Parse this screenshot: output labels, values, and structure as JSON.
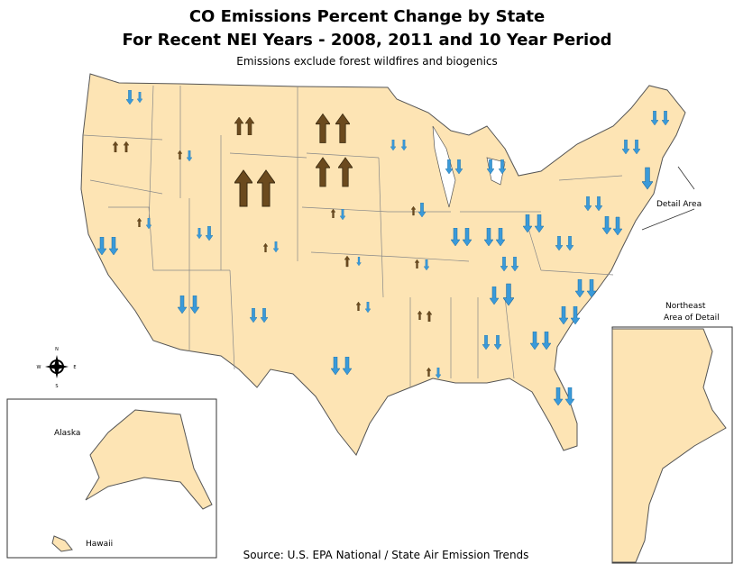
{
  "title": {
    "line1": "CO Emissions Percent Change by State",
    "line2": "For Recent NEI Years - 2008, 2011 and 10 Year Period",
    "subtitle": "Emissions exclude forest wildfires and biogenics"
  },
  "labels": {
    "detail_area": "Detail Area",
    "northeast_1": "Northeast",
    "northeast_2": "Area of Detail",
    "alaska": "Alaska",
    "hawaii": "Hawaii"
  },
  "compass": {
    "n": "N",
    "e": "E",
    "s": "S",
    "w": "W"
  },
  "source": "Source: U.S. EPA National / State Air Emission Trends"
}
